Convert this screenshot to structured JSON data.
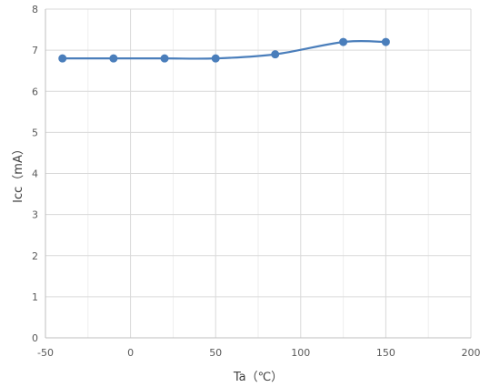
{
  "chart_data": {
    "type": "line",
    "title": "",
    "xlabel": "Ta（℃）",
    "ylabel": "Icc（mA）",
    "xlim": [
      -50,
      200
    ],
    "ylim": [
      0,
      8
    ],
    "x_ticks": [
      -50,
      0,
      50,
      100,
      150,
      200
    ],
    "y_ticks": [
      0,
      1,
      2,
      3,
      4,
      5,
      6,
      7,
      8
    ],
    "x_minor_step": 25,
    "grid": true,
    "legend": "none",
    "smooth": true,
    "series": [
      {
        "x": [
          -40,
          -10,
          20,
          50,
          85,
          125,
          150
        ],
        "values": [
          6.8,
          6.8,
          6.8,
          6.8,
          6.9,
          7.2,
          7.2
        ],
        "color": "#4a7ebb"
      }
    ]
  },
  "colors": {
    "line": "#4a7ebb",
    "marker": "#4a7ebb",
    "major_grid": "#d9d9d9",
    "minor_grid": "#eeeeee",
    "axis": "#bfbfbf"
  }
}
